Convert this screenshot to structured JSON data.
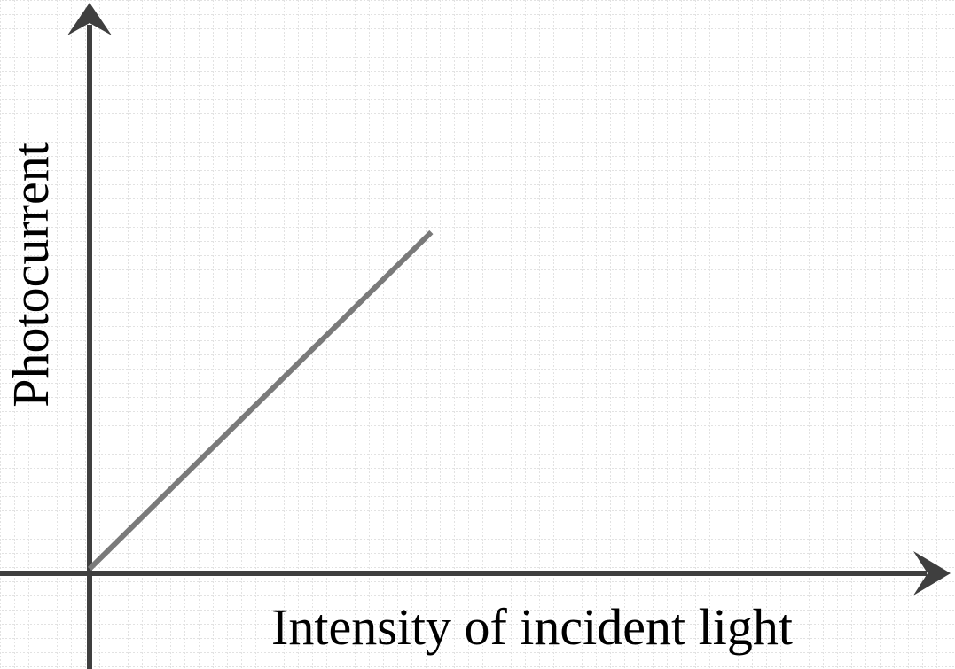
{
  "chart_data": {
    "type": "line",
    "title": "",
    "xlabel": "Intensity of incident light",
    "ylabel": "Photocurrent",
    "xlim": [
      0,
      100
    ],
    "ylim": [
      0,
      100
    ],
    "grid": true,
    "legend": "none",
    "series": [
      {
        "color": "#7a7a7a",
        "x": [
          0,
          41
        ],
        "y": [
          0,
          61
        ]
      }
    ]
  },
  "colors": {
    "axis": "#3f3f3f",
    "grid": "#d9d9d9",
    "series": "#7a7a7a"
  }
}
